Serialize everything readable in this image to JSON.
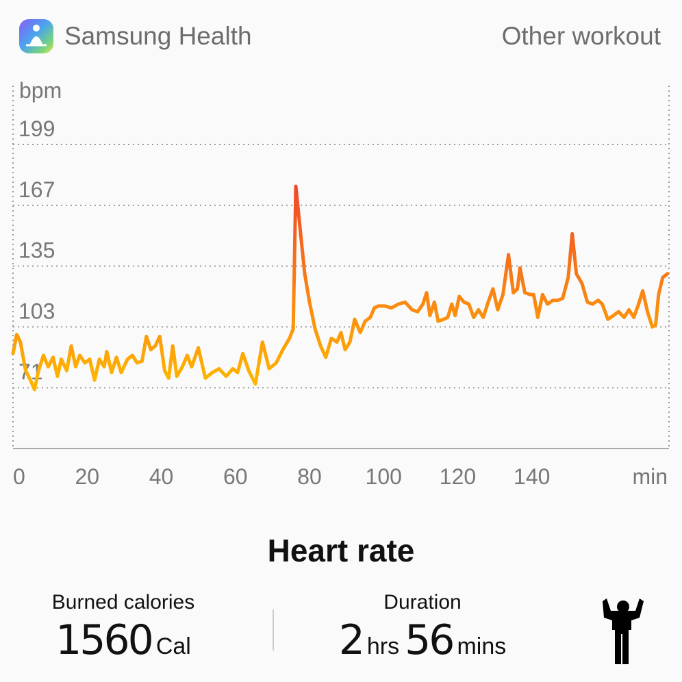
{
  "header": {
    "app_name": "Samsung Health",
    "workout": "Other workout"
  },
  "chart_data": {
    "type": "line",
    "title": "Heart rate",
    "y_label": "bpm",
    "x_label": "min",
    "xlim": [
      0,
      177
    ],
    "ylim": [
      39,
      230
    ],
    "xticks": [
      0,
      20,
      40,
      60,
      80,
      100,
      120,
      140
    ],
    "yticks": [
      71,
      103,
      135,
      167,
      199
    ],
    "grid": true,
    "gradient": [
      "#f0452a",
      "#ffb400"
    ],
    "x": [
      0,
      1,
      2,
      3.4,
      4.7,
      5.8,
      6.9,
      8.2,
      9.5,
      10.8,
      12,
      13,
      14.5,
      15.7,
      16.9,
      18,
      19.4,
      20.7,
      22,
      23.3,
      24.6,
      25.3,
      26.6,
      27.9,
      29.2,
      30.9,
      32.2,
      33.5,
      34.8,
      36,
      37.2,
      38.4,
      39.6,
      40.9,
      42,
      43.1,
      44.2,
      45.7,
      47,
      48.2,
      50,
      51.9,
      53.8,
      55.6,
      57.5,
      59.3,
      60.6,
      62,
      63.6,
      65.4,
      67.3,
      69.1,
      71,
      72.8,
      74.6,
      75.6,
      76.3,
      77.4,
      78.7,
      80,
      81.5,
      83,
      84.4,
      85.9,
      87.4,
      88.5,
      89.6,
      90.9,
      92.2,
      93.7,
      95,
      96.4,
      97.5,
      98.6,
      100.3,
      102.1,
      104,
      105.8,
      107.7,
      109.2,
      110.6,
      111.6,
      112.5,
      113.7,
      114.7,
      116.2,
      117.3,
      118.4,
      119.3,
      120.4,
      121.7,
      123,
      124.3,
      125.6,
      126.9,
      128.2,
      129.5,
      130.8,
      132.2,
      133.7,
      135,
      136.1,
      136.8,
      138.1,
      139.6,
      140.5,
      141.6,
      142.9,
      144.2,
      145.7,
      147,
      148.3,
      149.8,
      150.9,
      152,
      153.5,
      155,
      156.4,
      157.9,
      159,
      160.5,
      162,
      163.4,
      164.9,
      166.2,
      167.5,
      168.8,
      169.9,
      171.2,
      172.5,
      173.4,
      174.2,
      175.3,
      176.6
    ],
    "values": [
      89,
      99,
      95,
      80,
      75,
      70,
      80,
      88,
      82,
      87,
      77,
      86,
      80,
      93,
      82,
      88,
      84,
      86,
      75,
      86,
      82,
      90,
      79,
      87,
      79,
      86,
      88,
      84,
      85,
      98,
      91,
      93,
      98,
      80,
      76,
      93,
      77,
      82,
      88,
      82,
      92,
      76,
      79,
      81,
      77,
      81,
      79,
      89,
      80,
      73,
      95,
      81,
      84,
      91,
      97,
      102,
      177,
      156,
      131,
      116,
      102,
      93,
      87,
      97,
      95,
      100,
      91,
      95,
      107,
      100,
      106,
      108,
      113,
      114,
      114,
      113,
      115,
      116,
      112,
      111,
      115,
      121,
      109,
      116,
      106,
      107,
      108,
      115,
      109,
      119,
      116,
      115,
      108,
      112,
      108,
      116,
      123,
      112,
      120,
      141,
      121,
      123,
      134,
      121,
      120,
      120,
      108,
      120,
      115,
      117,
      117,
      118,
      129,
      152,
      131,
      126,
      116,
      115,
      117,
      115,
      107,
      109,
      111,
      108,
      112,
      108,
      115,
      122,
      111,
      103,
      104,
      120,
      129,
      131
    ]
  },
  "stats": {
    "calories": {
      "label": "Burned calories",
      "value": "1560",
      "unit": "Cal"
    },
    "duration": {
      "label": "Duration",
      "hours": "2",
      "hours_unit": "hrs",
      "minutes": "56",
      "minutes_unit": "mins"
    }
  }
}
